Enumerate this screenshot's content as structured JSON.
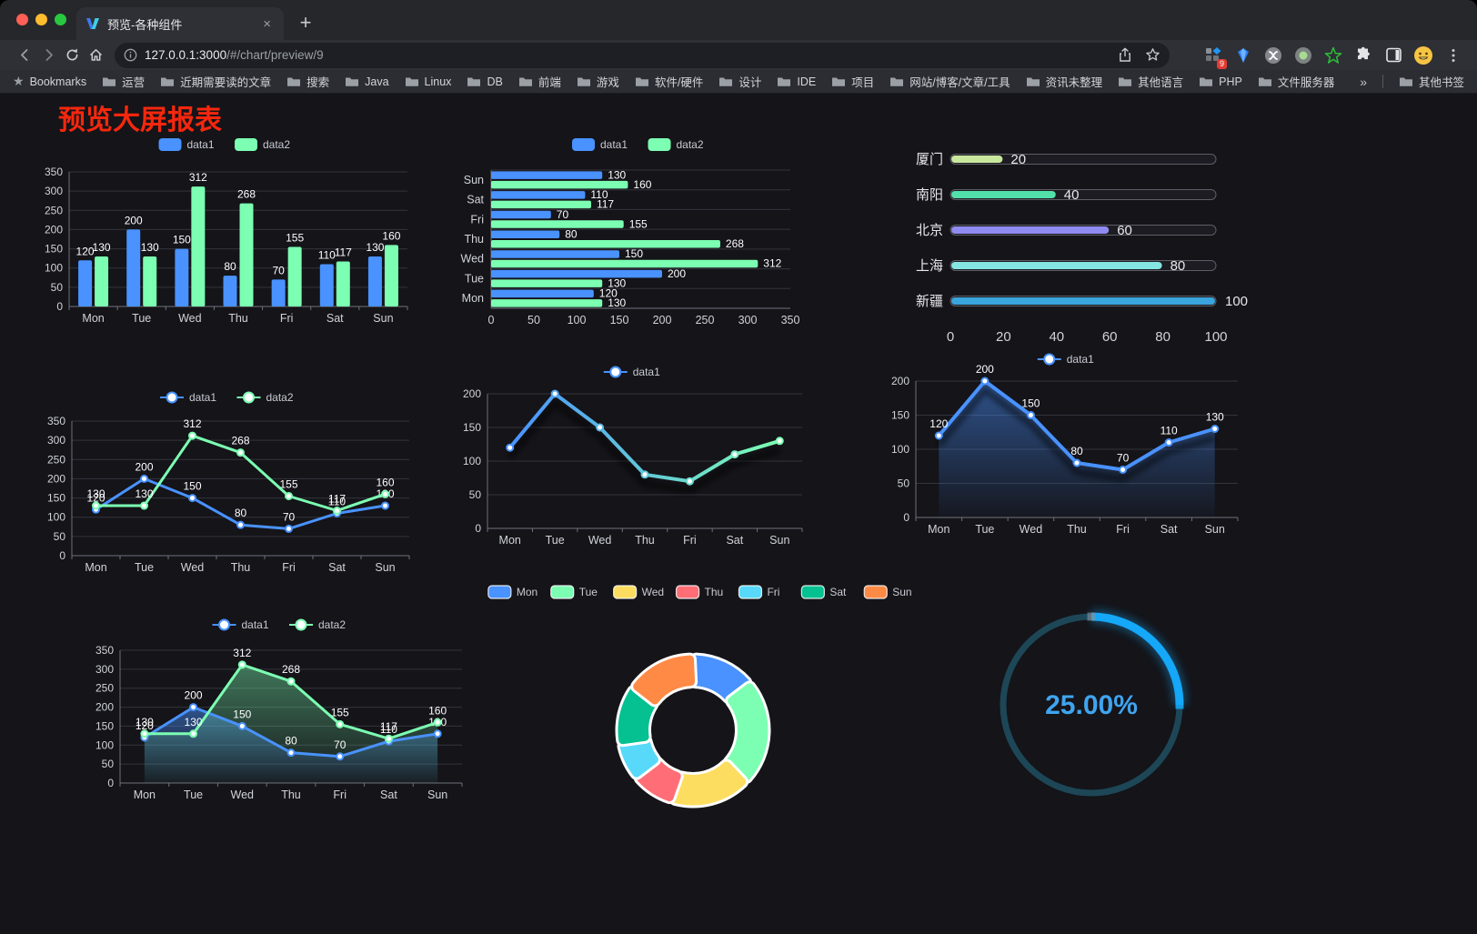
{
  "browser": {
    "tab_title": "预览-各种组件",
    "close_tab_glyph": "×",
    "new_tab_glyph": "+",
    "url_host": "127.0.0.1:3000",
    "url_path": "/#/chart/preview/9",
    "bookmarks_root_label": "Bookmarks",
    "bookmarks": [
      "运营",
      "近期需要读的文章",
      "搜索",
      "Java",
      "Linux",
      "DB",
      "前端",
      "游戏",
      "软件/硬件",
      "设计",
      "IDE",
      "项目",
      "网站/博客/文章/工具",
      "资讯未整理",
      "其他语言",
      "PHP",
      "文件服务器"
    ],
    "overflow_glyph": "»",
    "other_bookmarks_label": "其他书签",
    "extension_badge": "9"
  },
  "page": {
    "title": "预览大屏报表",
    "title_color": "#f5270d",
    "background": "#141419"
  },
  "chart_data": [
    {
      "id": "bar-vertical",
      "type": "bar",
      "categories": [
        "Mon",
        "Tue",
        "Wed",
        "Thu",
        "Fri",
        "Sat",
        "Sun"
      ],
      "series": [
        {
          "name": "data1",
          "color": "#4992ff",
          "values": [
            120,
            200,
            150,
            80,
            70,
            110,
            130
          ]
        },
        {
          "name": "data2",
          "color": "#7cffb2",
          "values": [
            130,
            130,
            312,
            268,
            155,
            117,
            160
          ]
        }
      ],
      "ylim": [
        0,
        350
      ],
      "ytick_step": 50,
      "grid": true,
      "legend_position": "top",
      "value_labels": true
    },
    {
      "id": "bar-horizontal",
      "type": "bar",
      "orientation": "horizontal",
      "categories": [
        "Mon",
        "Tue",
        "Wed",
        "Thu",
        "Fri",
        "Sat",
        "Sun"
      ],
      "series": [
        {
          "name": "data1",
          "color": "#4992ff",
          "values": [
            120,
            200,
            150,
            80,
            70,
            110,
            130
          ]
        },
        {
          "name": "data2",
          "color": "#7cffb2",
          "values": [
            130,
            130,
            312,
            268,
            155,
            117,
            160
          ]
        }
      ],
      "xlim": [
        0,
        350
      ],
      "xtick_step": 50,
      "grid": true,
      "legend_position": "top",
      "value_labels": true
    },
    {
      "id": "progress-bars",
      "type": "bar",
      "subtype": "progress",
      "items": [
        {
          "label": "厦门",
          "value": 20,
          "color": "#c9e89d"
        },
        {
          "label": "南阳",
          "value": 40,
          "color": "#52e0aa"
        },
        {
          "label": "北京",
          "value": 60,
          "color": "#908bf0"
        },
        {
          "label": "上海",
          "value": 80,
          "color": "#85e6e1"
        },
        {
          "label": "新疆",
          "value": 100,
          "color": "#3aa4dc"
        }
      ],
      "xlim": [
        0,
        100
      ],
      "xticks": [
        0,
        20,
        40,
        60,
        80,
        100
      ]
    },
    {
      "id": "line-multi",
      "type": "line",
      "categories": [
        "Mon",
        "Tue",
        "Wed",
        "Thu",
        "Fri",
        "Sat",
        "Sun"
      ],
      "series": [
        {
          "name": "data1",
          "color": "#4992ff",
          "values": [
            120,
            200,
            150,
            80,
            70,
            110,
            130
          ]
        },
        {
          "name": "data2",
          "color": "#7cffb2",
          "values": [
            130,
            130,
            312,
            268,
            155,
            117,
            160
          ]
        }
      ],
      "ylim": [
        0,
        350
      ],
      "ytick_step": 50,
      "grid": true,
      "legend_position": "top",
      "value_labels": true
    },
    {
      "id": "line-gradient",
      "type": "line",
      "categories": [
        "Mon",
        "Tue",
        "Wed",
        "Thu",
        "Fri",
        "Sat",
        "Sun"
      ],
      "series": [
        {
          "name": "data1",
          "color_gradient": [
            "#4992ff",
            "#7cffb2"
          ],
          "values": [
            120,
            200,
            150,
            80,
            70,
            110,
            130
          ]
        }
      ],
      "ylim": [
        0,
        200
      ],
      "ytick_step": 50,
      "grid": true,
      "legend_position": "top",
      "value_labels": false,
      "shadow": true
    },
    {
      "id": "area-single",
      "type": "area",
      "categories": [
        "Mon",
        "Tue",
        "Wed",
        "Thu",
        "Fri",
        "Sat",
        "Sun"
      ],
      "series": [
        {
          "name": "data1",
          "color": "#4992ff",
          "values": [
            120,
            200,
            150,
            80,
            70,
            110,
            130
          ],
          "area": true
        }
      ],
      "ylim": [
        0,
        200
      ],
      "ytick_step": 50,
      "grid": true,
      "legend_position": "top",
      "value_labels": true,
      "shadow": true
    },
    {
      "id": "area-multi",
      "type": "area",
      "categories": [
        "Mon",
        "Tue",
        "Wed",
        "Thu",
        "Fri",
        "Sat",
        "Sun"
      ],
      "series": [
        {
          "name": "data1",
          "color": "#4992ff",
          "values": [
            120,
            200,
            150,
            80,
            70,
            110,
            130
          ],
          "area": true
        },
        {
          "name": "data2",
          "color": "#7cffb2",
          "values": [
            130,
            130,
            312,
            268,
            155,
            117,
            160
          ],
          "area": true
        }
      ],
      "ylim": [
        0,
        350
      ],
      "ytick_step": 50,
      "grid": true,
      "legend_position": "top",
      "value_labels": true
    },
    {
      "id": "donut",
      "type": "pie",
      "categories": [
        "Mon",
        "Tue",
        "Wed",
        "Thu",
        "Fri",
        "Sat",
        "Sun"
      ],
      "values": [
        120,
        200,
        150,
        80,
        70,
        110,
        130
      ],
      "colors": [
        "#4992ff",
        "#7cffb2",
        "#fddd60",
        "#ff6e76",
        "#58d9f9",
        "#05c091",
        "#ff8a45"
      ],
      "inner_radius_ratio": 0.57,
      "border_color": "#ffffff",
      "legend_position": "top"
    },
    {
      "id": "gauge",
      "type": "gauge",
      "percent": 25,
      "label": "25.00%",
      "progress_color": "#15a7f8",
      "track_color": "#1d4757",
      "text_color": "#3fa4ef"
    }
  ]
}
